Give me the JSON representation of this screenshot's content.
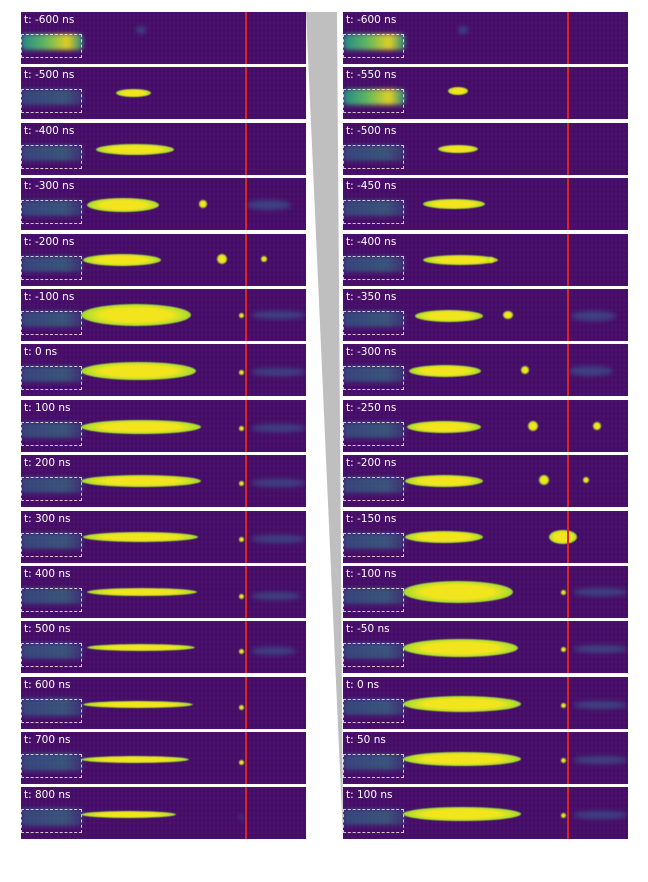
{
  "figure": {
    "left_column": {
      "frames": [
        {
          "label": "t: -600 ns"
        },
        {
          "label": "t: -500 ns"
        },
        {
          "label": "t: -400 ns"
        },
        {
          "label": "t: -300 ns"
        },
        {
          "label": "t: -200 ns"
        },
        {
          "label": "t: -100 ns"
        },
        {
          "label": "t: 0 ns"
        },
        {
          "label": "t: 100 ns"
        },
        {
          "label": "t: 200 ns"
        },
        {
          "label": "t: 300 ns"
        },
        {
          "label": "t: 400 ns"
        },
        {
          "label": "t: 500 ns"
        },
        {
          "label": "t: 600 ns"
        },
        {
          "label": "t: 700 ns"
        },
        {
          "label": "t: 800 ns"
        }
      ]
    },
    "right_column": {
      "frames": [
        {
          "label": "t: -600 ns"
        },
        {
          "label": "t: -550 ns"
        },
        {
          "label": "t: -500 ns"
        },
        {
          "label": "t: -450 ns"
        },
        {
          "label": "t: -400 ns"
        },
        {
          "label": "t: -350 ns"
        },
        {
          "label": "t: -300 ns"
        },
        {
          "label": "t: -250 ns"
        },
        {
          "label": "t: -200 ns"
        },
        {
          "label": "t: -150 ns"
        },
        {
          "label": "t: -100 ns"
        },
        {
          "label": "t: -50 ns"
        },
        {
          "label": "t: 0 ns"
        },
        {
          "label": "t: 50 ns"
        },
        {
          "label": "t: 100 ns"
        }
      ]
    },
    "colors": {
      "background": "#460c69",
      "marker_line": "#e0221e",
      "connector": "#bfbfbf",
      "hot": "#f2e51e",
      "warm": "#5ec962",
      "cool": "#21918c"
    }
  }
}
